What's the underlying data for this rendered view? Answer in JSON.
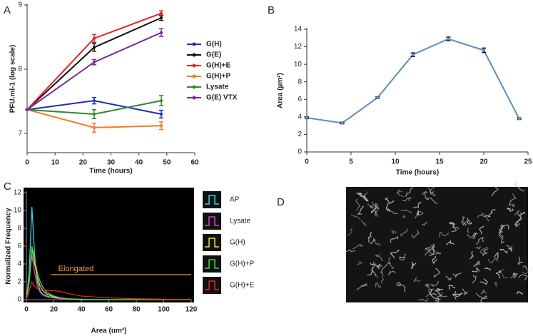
{
  "chart_data": [
    {
      "type": "line",
      "panel": "A",
      "x_label": "Time (hours)",
      "y_label": "PFU.ml-1 (log scale)",
      "x": [
        0,
        24,
        48
      ],
      "xlim": [
        0,
        60
      ],
      "xticks": [
        0,
        10,
        20,
        30,
        40,
        50,
        60
      ],
      "ylim": [
        6.7,
        9
      ],
      "yticks": [
        7,
        8,
        9
      ],
      "legend": "right",
      "error_bars": true,
      "series": [
        {
          "name": "G(H)",
          "color": "#1f2fbf",
          "values": [
            7.37,
            7.51,
            7.3
          ],
          "errors": [
            0,
            0.05,
            0.06
          ]
        },
        {
          "name": "G(E)",
          "color": "#111111",
          "values": [
            7.37,
            8.34,
            8.8
          ],
          "errors": [
            0,
            0.06,
            0.04
          ]
        },
        {
          "name": "G(H)+E",
          "color": "#e8231f",
          "values": [
            7.37,
            8.48,
            8.87
          ],
          "errors": [
            0,
            0.06,
            0.04
          ]
        },
        {
          "name": "G(H)+P",
          "color": "#f07d22",
          "values": [
            7.37,
            7.09,
            7.12
          ],
          "errors": [
            0,
            0.07,
            0.06
          ]
        },
        {
          "name": "Lysate",
          "color": "#2e8b2e",
          "values": [
            7.37,
            7.3,
            7.51
          ],
          "errors": [
            0,
            0.07,
            0.08
          ]
        },
        {
          "name": "G(E) VTX",
          "color": "#7a2a9e",
          "values": [
            7.37,
            8.11,
            8.57
          ],
          "errors": [
            0,
            0.04,
            0.06
          ]
        }
      ]
    },
    {
      "type": "line",
      "panel": "B",
      "x_label": "Time (hours)",
      "y_label": "Area (µm²)",
      "x": [
        0,
        4,
        8,
        12,
        16,
        20,
        24
      ],
      "xlim": [
        0,
        25
      ],
      "xticks": [
        0,
        5,
        10,
        15,
        20,
        25
      ],
      "ylim": [
        0,
        14
      ],
      "yticks": [
        0,
        2,
        4,
        6,
        8,
        10,
        12,
        14
      ],
      "error_bars": true,
      "series": [
        {
          "color": "#5b8dc4",
          "values": [
            3.9,
            3.3,
            6.2,
            11.1,
            12.9,
            11.6,
            3.8
          ],
          "errors": [
            0.1,
            0.1,
            0.1,
            0.2,
            0.2,
            0.25,
            0.1
          ]
        }
      ]
    },
    {
      "type": "line",
      "panel": "C",
      "x_label": "Area (um²)",
      "y_label": "Normalized Frequency",
      "background": "#000000",
      "x": [
        0,
        2,
        4,
        6,
        8,
        10,
        12,
        15,
        20,
        25,
        30,
        40,
        50,
        60,
        80,
        100,
        120
      ],
      "xlim": [
        0,
        120
      ],
      "xticks": [
        0,
        20,
        40,
        60,
        80,
        100,
        120
      ],
      "ylim": [
        0,
        12
      ],
      "yticks": [
        0,
        2,
        4,
        6,
        8,
        10,
        12
      ],
      "legend": "right",
      "annotation": {
        "text": "Elongated",
        "x": [
          18,
          120
        ],
        "y": 2.8,
        "color": "#f0a030"
      },
      "series": [
        {
          "name": "AP",
          "color": "#22d8e8",
          "values": [
            0,
            3,
            10.4,
            5,
            2,
            1,
            0.6,
            0.4,
            0.2,
            0.1,
            0.05,
            0,
            0,
            0,
            0,
            0,
            0
          ]
        },
        {
          "name": "Lysate",
          "color": "#e040c0",
          "values": [
            0,
            2,
            5,
            3,
            1.5,
            0.8,
            0.5,
            0.3,
            0.2,
            0.1,
            0,
            0,
            0,
            0,
            0,
            0,
            0
          ]
        },
        {
          "name": "G(H)",
          "color": "#e8e820",
          "values": [
            0,
            2,
            5.8,
            4,
            2.5,
            1.5,
            1,
            0.6,
            0.3,
            0.2,
            0.1,
            0,
            0,
            0,
            0,
            0,
            0
          ]
        },
        {
          "name": "G(H)+P",
          "color": "#30e030",
          "values": [
            0,
            2,
            6,
            4.5,
            3,
            2,
            1.4,
            0.8,
            0.4,
            0.2,
            0.1,
            0.05,
            0,
            0,
            0,
            0,
            0
          ]
        },
        {
          "name": "G(H)+E",
          "color": "#e82020",
          "values": [
            0,
            1,
            2,
            1.5,
            1.2,
            1.4,
            1.3,
            1,
            1,
            0.9,
            0.7,
            0.4,
            0.3,
            0.2,
            0.1,
            0.05,
            0
          ]
        }
      ]
    }
  ],
  "image_panel": {
    "panel": "D"
  }
}
